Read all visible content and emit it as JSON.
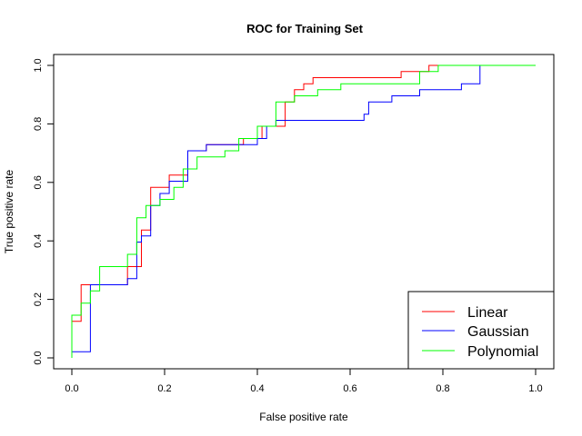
{
  "chart_data": {
    "type": "line",
    "title": "ROC for Training Set",
    "xlabel": "False positive rate",
    "ylabel": "True positive rate",
    "xlim": [
      0,
      1
    ],
    "ylim": [
      0,
      1
    ],
    "x_ticks": [
      "0.0",
      "0.2",
      "0.4",
      "0.6",
      "0.8",
      "1.0"
    ],
    "y_ticks": [
      "0.0",
      "0.2",
      "0.4",
      "0.6",
      "0.8",
      "1.0"
    ],
    "grid": false,
    "legend_position": "bottom-right",
    "series": [
      {
        "name": "Linear",
        "color": "#ff0000",
        "points": [
          [
            0.0,
            0.0
          ],
          [
            0.0,
            0.125
          ],
          [
            0.02,
            0.125
          ],
          [
            0.02,
            0.25
          ],
          [
            0.12,
            0.25
          ],
          [
            0.12,
            0.312
          ],
          [
            0.15,
            0.312
          ],
          [
            0.15,
            0.437
          ],
          [
            0.17,
            0.437
          ],
          [
            0.17,
            0.583
          ],
          [
            0.21,
            0.583
          ],
          [
            0.21,
            0.625
          ],
          [
            0.25,
            0.625
          ],
          [
            0.25,
            0.708
          ],
          [
            0.29,
            0.708
          ],
          [
            0.29,
            0.729
          ],
          [
            0.37,
            0.729
          ],
          [
            0.37,
            0.75
          ],
          [
            0.41,
            0.75
          ],
          [
            0.41,
            0.792
          ],
          [
            0.46,
            0.792
          ],
          [
            0.46,
            0.875
          ],
          [
            0.48,
            0.875
          ],
          [
            0.48,
            0.917
          ],
          [
            0.5,
            0.917
          ],
          [
            0.5,
            0.937
          ],
          [
            0.52,
            0.937
          ],
          [
            0.52,
            0.958
          ],
          [
            0.71,
            0.958
          ],
          [
            0.71,
            0.979
          ],
          [
            0.77,
            0.979
          ],
          [
            0.77,
            1.0
          ],
          [
            1.0,
            1.0
          ]
        ]
      },
      {
        "name": "Gaussian",
        "color": "#0000ff",
        "points": [
          [
            0.0,
            0.0
          ],
          [
            0.0,
            0.021
          ],
          [
            0.04,
            0.021
          ],
          [
            0.04,
            0.25
          ],
          [
            0.12,
            0.25
          ],
          [
            0.12,
            0.271
          ],
          [
            0.14,
            0.271
          ],
          [
            0.14,
            0.396
          ],
          [
            0.15,
            0.396
          ],
          [
            0.15,
            0.417
          ],
          [
            0.17,
            0.417
          ],
          [
            0.17,
            0.521
          ],
          [
            0.19,
            0.521
          ],
          [
            0.19,
            0.562
          ],
          [
            0.21,
            0.562
          ],
          [
            0.21,
            0.604
          ],
          [
            0.25,
            0.604
          ],
          [
            0.25,
            0.708
          ],
          [
            0.29,
            0.708
          ],
          [
            0.29,
            0.729
          ],
          [
            0.4,
            0.729
          ],
          [
            0.4,
            0.75
          ],
          [
            0.42,
            0.75
          ],
          [
            0.42,
            0.792
          ],
          [
            0.44,
            0.792
          ],
          [
            0.44,
            0.812
          ],
          [
            0.63,
            0.812
          ],
          [
            0.63,
            0.833
          ],
          [
            0.64,
            0.833
          ],
          [
            0.64,
            0.875
          ],
          [
            0.69,
            0.875
          ],
          [
            0.69,
            0.896
          ],
          [
            0.75,
            0.896
          ],
          [
            0.75,
            0.917
          ],
          [
            0.84,
            0.917
          ],
          [
            0.84,
            0.937
          ],
          [
            0.88,
            0.937
          ],
          [
            0.88,
            1.0
          ],
          [
            1.0,
            1.0
          ]
        ]
      },
      {
        "name": "Polynomial",
        "color": "#00ff00",
        "points": [
          [
            0.0,
            0.0
          ],
          [
            0.0,
            0.146
          ],
          [
            0.02,
            0.146
          ],
          [
            0.02,
            0.187
          ],
          [
            0.04,
            0.187
          ],
          [
            0.04,
            0.229
          ],
          [
            0.06,
            0.229
          ],
          [
            0.06,
            0.312
          ],
          [
            0.12,
            0.312
          ],
          [
            0.12,
            0.354
          ],
          [
            0.14,
            0.354
          ],
          [
            0.14,
            0.479
          ],
          [
            0.16,
            0.479
          ],
          [
            0.16,
            0.521
          ],
          [
            0.19,
            0.521
          ],
          [
            0.19,
            0.542
          ],
          [
            0.22,
            0.542
          ],
          [
            0.22,
            0.583
          ],
          [
            0.24,
            0.583
          ],
          [
            0.24,
            0.646
          ],
          [
            0.27,
            0.646
          ],
          [
            0.27,
            0.687
          ],
          [
            0.33,
            0.687
          ],
          [
            0.33,
            0.708
          ],
          [
            0.36,
            0.708
          ],
          [
            0.36,
            0.75
          ],
          [
            0.4,
            0.75
          ],
          [
            0.4,
            0.792
          ],
          [
            0.44,
            0.792
          ],
          [
            0.44,
            0.875
          ],
          [
            0.48,
            0.875
          ],
          [
            0.48,
            0.896
          ],
          [
            0.53,
            0.896
          ],
          [
            0.53,
            0.917
          ],
          [
            0.58,
            0.917
          ],
          [
            0.58,
            0.937
          ],
          [
            0.75,
            0.937
          ],
          [
            0.75,
            0.979
          ],
          [
            0.79,
            0.979
          ],
          [
            0.79,
            1.0
          ],
          [
            1.0,
            1.0
          ]
        ]
      }
    ]
  }
}
